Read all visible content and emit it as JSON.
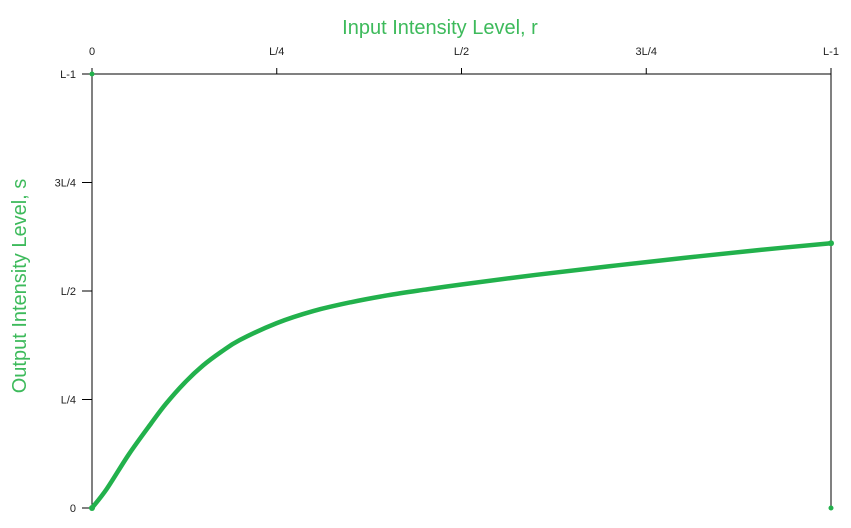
{
  "chart_data": {
    "type": "line",
    "xlabel": "Input Intensity Level, r",
    "ylabel": "Output Intensity Level, s",
    "x_axis_position": "top",
    "x_ticks": [
      "0",
      "L/4",
      "L/2",
      "3L/4",
      "L-1"
    ],
    "y_ticks": [
      "0",
      "L/4",
      "L/2",
      "3L/4",
      "L-1"
    ],
    "xlim": [
      0,
      1
    ],
    "ylim": [
      0,
      1
    ],
    "grid": false,
    "series": [
      {
        "color": "#22b14c",
        "x": [
          0,
          0.02,
          0.05,
          0.08,
          0.1,
          0.125,
          0.15,
          0.175,
          0.2,
          0.25,
          0.3,
          0.35,
          0.4,
          0.45,
          0.5,
          0.6,
          0.7,
          0.8,
          0.9,
          1.0
        ],
        "y": [
          0,
          0.044,
          0.124,
          0.195,
          0.24,
          0.288,
          0.328,
          0.36,
          0.387,
          0.426,
          0.454,
          0.474,
          0.49,
          0.503,
          0.515,
          0.537,
          0.557,
          0.576,
          0.594,
          0.61
        ]
      }
    ]
  },
  "colors": {
    "title": "#3dba5b",
    "axis": "#000000",
    "curve": "#22b14c"
  }
}
